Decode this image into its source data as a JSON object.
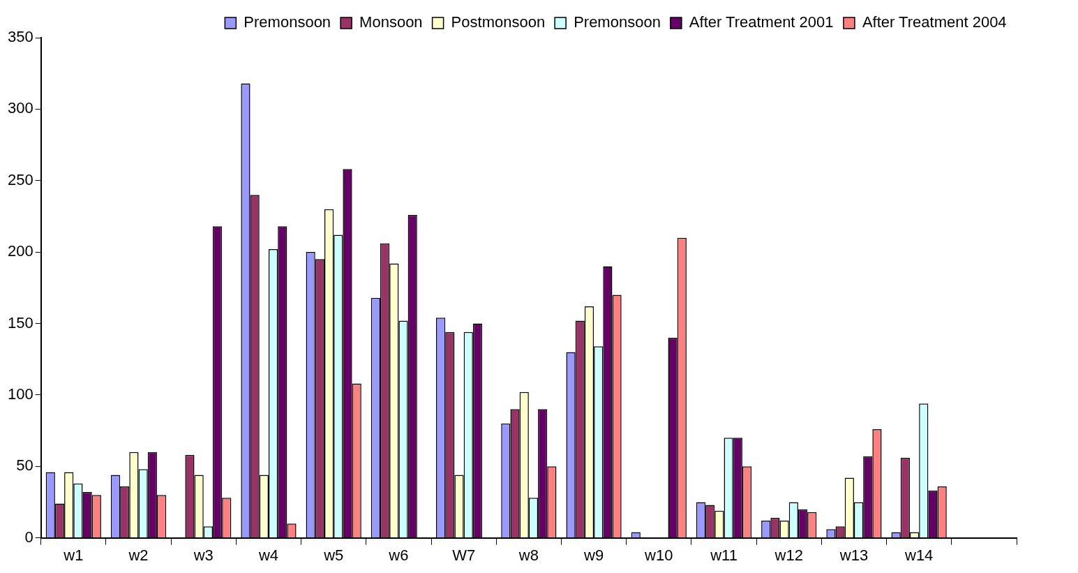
{
  "chart_data": {
    "type": "bar",
    "categories": [
      "w1",
      "w2",
      "w3",
      "w4",
      "w5",
      "w6",
      "W7",
      "w8",
      "w9",
      "w10",
      "w11",
      "w12",
      "w13",
      "w14",
      null
    ],
    "series": [
      {
        "name": "Premonsoon",
        "color": "#9999ff",
        "values": [
          46,
          44,
          0,
          318,
          200,
          168,
          154,
          80,
          130,
          4,
          25,
          12,
          6,
          4,
          null
        ]
      },
      {
        "name": "Monsoon",
        "color": "#993366",
        "values": [
          24,
          36,
          58,
          240,
          195,
          206,
          144,
          90,
          152,
          0,
          23,
          14,
          8,
          56,
          null
        ]
      },
      {
        "name": "Postmonsoon",
        "color": "#ffffcc",
        "values": [
          46,
          60,
          44,
          44,
          230,
          192,
          44,
          102,
          162,
          0,
          19,
          12,
          42,
          4,
          null
        ]
      },
      {
        "name": "Premonsoon",
        "color": "#ccffff",
        "values": [
          38,
          48,
          8,
          202,
          212,
          152,
          144,
          28,
          134,
          0,
          70,
          25,
          25,
          94,
          null
        ]
      },
      {
        "name": "After Treatment 2001",
        "color": "#660066",
        "values": [
          32,
          60,
          218,
          218,
          258,
          226,
          150,
          90,
          190,
          140,
          70,
          20,
          57,
          33,
          null
        ]
      },
      {
        "name": "After Treatment 2004",
        "color": "#ff8080",
        "values": [
          30,
          30,
          28,
          10,
          108,
          0,
          0,
          50,
          170,
          210,
          50,
          18,
          76,
          36,
          null
        ]
      }
    ],
    "ylim": [
      0,
      350
    ],
    "yticks": [
      0,
      50,
      100,
      150,
      200,
      250,
      300,
      350
    ],
    "grid": false,
    "legend": "top right"
  }
}
